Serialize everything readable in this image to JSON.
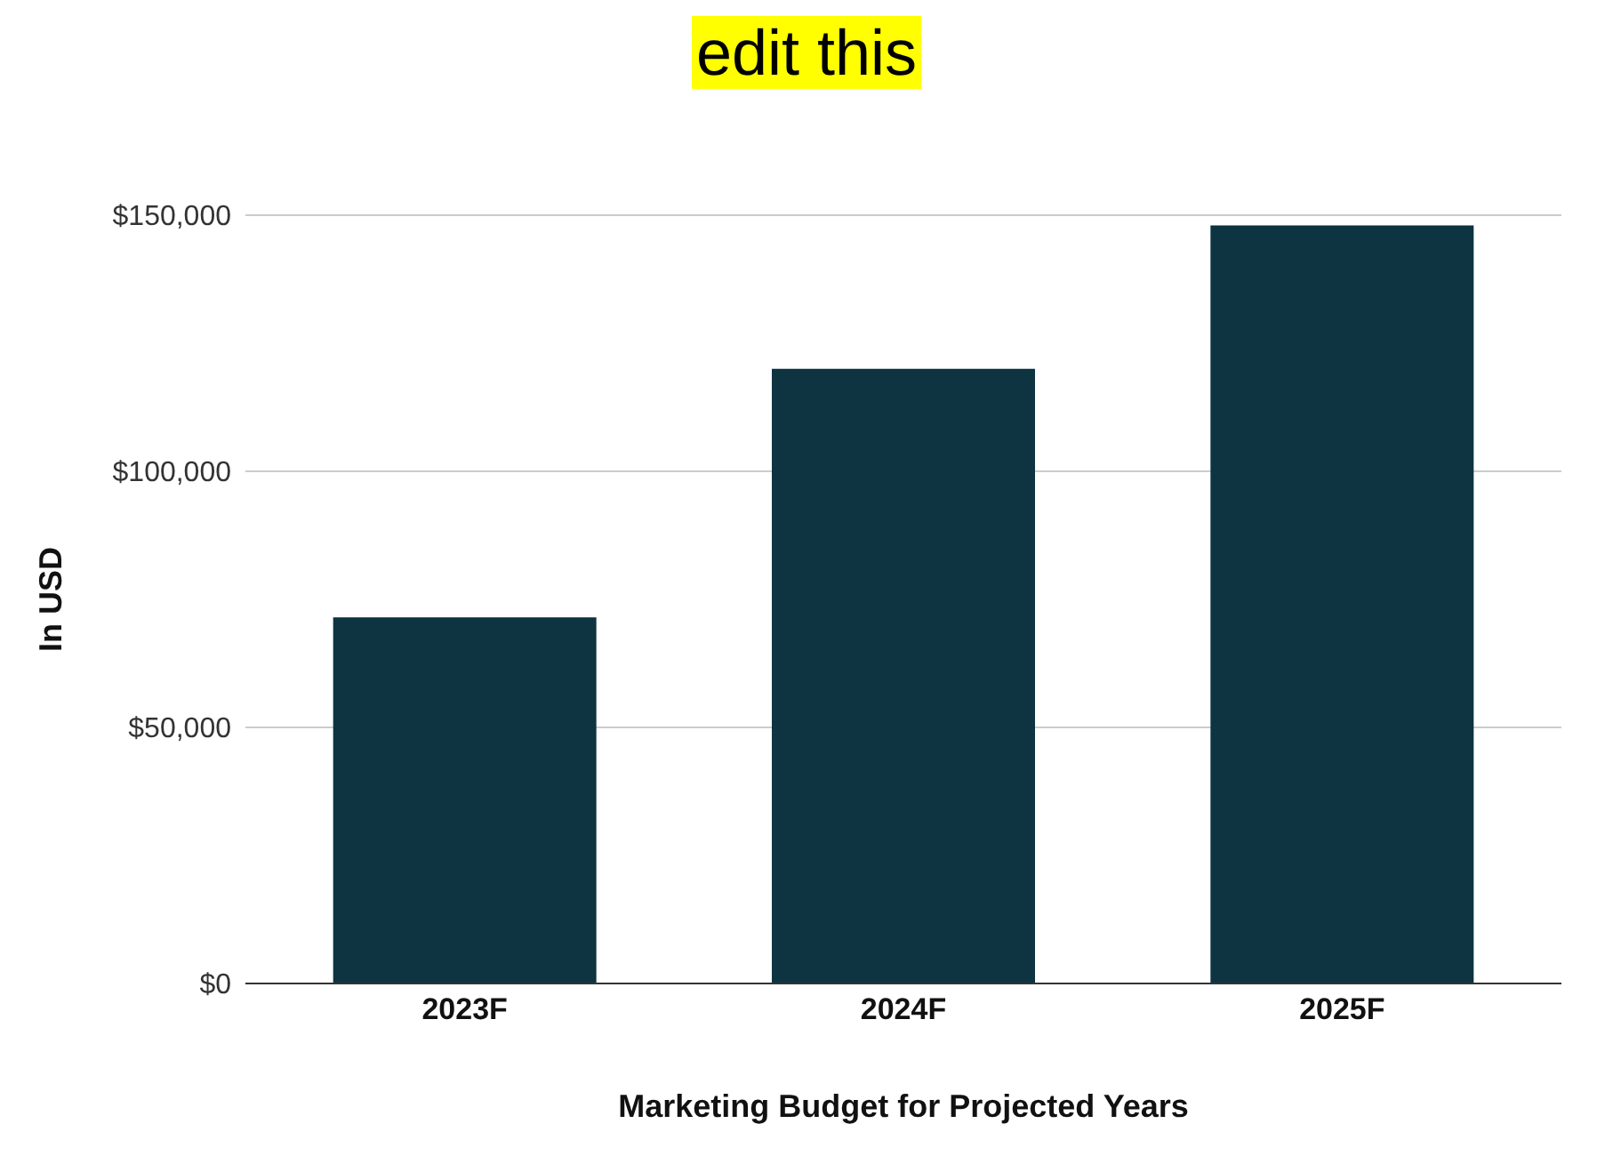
{
  "chart_data": {
    "type": "bar",
    "title": "edit this",
    "xlabel": "Marketing Budget for Projected Years",
    "ylabel": "In USD",
    "categories": [
      "2023F",
      "2024F",
      "2025F"
    ],
    "values": [
      71500,
      120000,
      148000
    ],
    "color": "#0d3440",
    "ylim": [
      0,
      150000
    ],
    "yticks": [
      {
        "value": 0,
        "label": "$0"
      },
      {
        "value": 50000,
        "label": "$50,000"
      },
      {
        "value": 100000,
        "label": "$100,000"
      },
      {
        "value": 150000,
        "label": "$150,000"
      }
    ],
    "grid": "y"
  }
}
